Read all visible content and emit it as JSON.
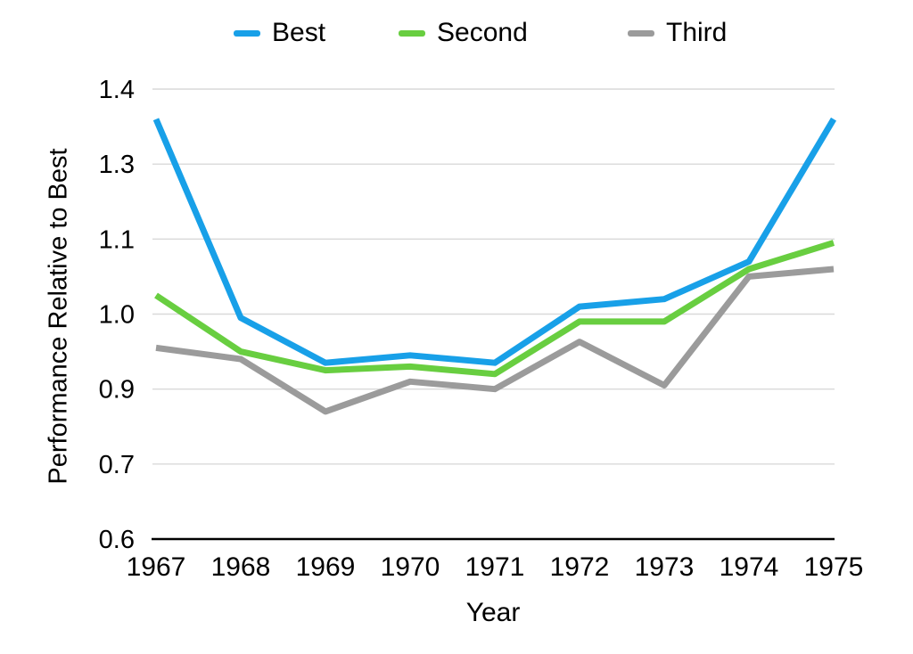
{
  "chart_data": {
    "type": "line",
    "title": "",
    "xlabel": "Year",
    "ylabel": "Performance Relative to Best",
    "categories": [
      "1967",
      "1968",
      "1969",
      "1970",
      "1971",
      "1972",
      "1973",
      "1974",
      "1975"
    ],
    "y_tick_labels": [
      "1.4",
      "1.3",
      "1.1",
      "1.0",
      "0.9",
      "0.7",
      "0.6"
    ],
    "ylim": [
      0.6,
      1.4
    ],
    "grid": true,
    "legend_position": "top",
    "series": [
      {
        "name": "Best",
        "color": "#18A0E8",
        "values": [
          1.36,
          0.995,
          0.935,
          0.945,
          0.935,
          1.01,
          1.02,
          1.07,
          1.36
        ]
      },
      {
        "name": "Second",
        "color": "#68CE40",
        "values": [
          1.025,
          0.95,
          0.925,
          0.93,
          0.92,
          0.99,
          0.99,
          1.06,
          1.095
        ]
      },
      {
        "name": "Third",
        "color": "#9B9B9B",
        "values": [
          0.955,
          0.94,
          0.84,
          0.91,
          0.9,
          0.963,
          0.905,
          1.05,
          1.06
        ]
      }
    ],
    "colors": {
      "gridline": "#D9D9D9",
      "axis_line": "#000000",
      "text": "#000000"
    }
  }
}
